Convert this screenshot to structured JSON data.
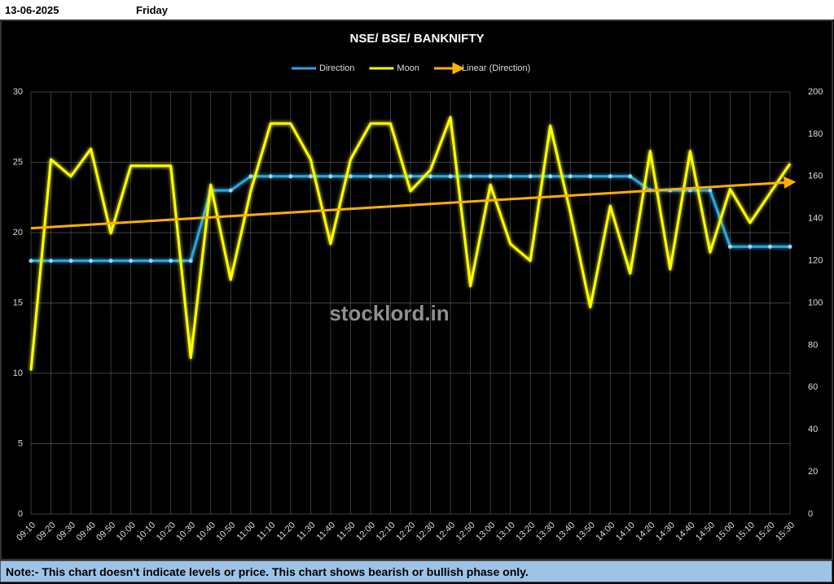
{
  "header": {
    "date": "13-06-2025",
    "day": "Friday"
  },
  "chart_data": {
    "type": "line",
    "title": "NSE/ BSE/ BANKNIFTY",
    "watermark": "stocklord.in",
    "categories": [
      "09:10",
      "09:20",
      "09:30",
      "09:40",
      "09:50",
      "10:00",
      "10:10",
      "10:20",
      "10:30",
      "10:40",
      "10:50",
      "11:00",
      "11:10",
      "11:20",
      "11:30",
      "11:40",
      "11:50",
      "12:00",
      "12:10",
      "12:20",
      "12:30",
      "12:40",
      "12:50",
      "13:00",
      "13:10",
      "13:20",
      "13:30",
      "13:40",
      "13:50",
      "14:00",
      "14:10",
      "14:20",
      "14:30",
      "14:40",
      "14:50",
      "15:00",
      "15:10",
      "15:20",
      "15:30"
    ],
    "series": [
      {
        "name": "Direction",
        "color": "#29a8e0",
        "markers": true,
        "values": [
          18,
          18,
          18,
          18,
          18,
          18,
          18,
          18,
          18,
          23,
          23,
          24,
          24,
          24,
          24,
          24,
          24,
          24,
          24,
          24,
          24,
          24,
          24,
          24,
          24,
          24,
          24,
          24,
          24,
          24,
          24,
          23,
          23,
          23,
          23,
          19,
          19,
          19,
          19
        ]
      },
      {
        "name": "Moon",
        "color": "#ffff00",
        "axis": "y2",
        "values": [
          68,
          168,
          160,
          173,
          133,
          165,
          165,
          165,
          74,
          156,
          111,
          153,
          185,
          185,
          168,
          128,
          168,
          185,
          185,
          153,
          163,
          188,
          108,
          156,
          128,
          120,
          184,
          143,
          98,
          146,
          114,
          172,
          116,
          172,
          124,
          154,
          138,
          152,
          166
        ]
      }
    ],
    "trendline": {
      "name": "Linear (Direction)",
      "color": "#ffb000",
      "of_series": 0
    },
    "ylim": [
      0,
      30
    ],
    "yticks": [
      0,
      5,
      10,
      15,
      20,
      25,
      30
    ],
    "y2lim": [
      0,
      200
    ],
    "y2ticks": [
      0,
      20,
      40,
      60,
      80,
      100,
      120,
      140,
      160,
      180,
      200
    ],
    "grid": true
  },
  "footer": {
    "note": "Note:- This chart doesn't indicate levels or price. This chart shows bearish or bullish phase only."
  }
}
